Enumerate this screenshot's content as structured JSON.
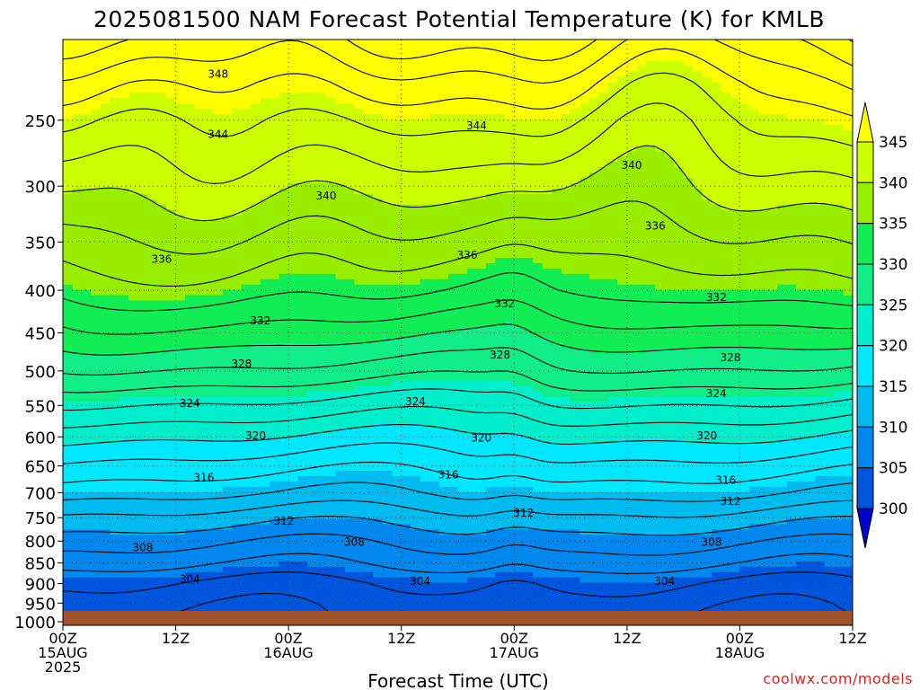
{
  "title": "2025081500 NAM Forecast Potential Temperature (K) for KMLB",
  "xlabel": "Forecast Time (UTC)",
  "credit": "coolwx.com/models",
  "colors": {
    "fill_levels": [
      {
        "min": 345,
        "color": "#ffff00"
      },
      {
        "min": 340,
        "color": "#ccff00"
      },
      {
        "min": 335,
        "color": "#99ee00"
      },
      {
        "min": 330,
        "color": "#11ee55"
      },
      {
        "min": 325,
        "color": "#11ee88"
      },
      {
        "min": 320,
        "color": "#00eecc"
      },
      {
        "min": 315,
        "color": "#00e8ff"
      },
      {
        "min": 310,
        "color": "#00bbf0"
      },
      {
        "min": 305,
        "color": "#0088ee"
      },
      {
        "min": 300,
        "color": "#0055dd"
      },
      {
        "min": 0,
        "color": "#0000cc"
      }
    ],
    "ground": "#a0522d"
  },
  "chart_data": {
    "type": "heatmap",
    "title": "2025081500 NAM Forecast Potential Temperature (K) for KMLB",
    "xlabel": "Forecast Time (UTC)",
    "ylabel": "",
    "x_ticks": [
      {
        "hour": 0,
        "lines": [
          "00Z",
          "15AUG",
          "2025"
        ]
      },
      {
        "hour": 12,
        "lines": [
          "12Z"
        ]
      },
      {
        "hour": 24,
        "lines": [
          "00Z",
          "16AUG"
        ]
      },
      {
        "hour": 36,
        "lines": [
          "12Z"
        ]
      },
      {
        "hour": 48,
        "lines": [
          "00Z",
          "17AUG"
        ]
      },
      {
        "hour": 60,
        "lines": [
          "12Z"
        ]
      },
      {
        "hour": 72,
        "lines": [
          "00Z",
          "18AUG"
        ]
      },
      {
        "hour": 84,
        "lines": [
          "12Z"
        ]
      }
    ],
    "xlim_hours": [
      0,
      84
    ],
    "y_ticks": [
      250,
      300,
      350,
      400,
      450,
      500,
      550,
      600,
      650,
      700,
      750,
      800,
      850,
      900,
      950,
      1000
    ],
    "ylim_hpa": [
      1010,
      200
    ],
    "y_scale": "log-pressure",
    "grid": "dotted",
    "colorbar": {
      "ticks": [
        300,
        305,
        310,
        315,
        320,
        325,
        330,
        335,
        340,
        345
      ],
      "bins": [
        {
          "lo": 300,
          "hi": 305,
          "color": "#0055dd"
        },
        {
          "lo": 305,
          "hi": 310,
          "color": "#0088ee"
        },
        {
          "lo": 310,
          "hi": 315,
          "color": "#00bbf0"
        },
        {
          "lo": 315,
          "hi": 320,
          "color": "#00e8ff"
        },
        {
          "lo": 320,
          "hi": 325,
          "color": "#00eecc"
        },
        {
          "lo": 325,
          "hi": 330,
          "color": "#11ee88"
        },
        {
          "lo": 330,
          "hi": 335,
          "color": "#11ee55"
        },
        {
          "lo": 335,
          "hi": 340,
          "color": "#99ee00"
        },
        {
          "lo": 340,
          "hi": 345,
          "color": "#ccff00"
        }
      ],
      "over_color": "#ffff00",
      "under_color": "#0000cc"
    },
    "contour_interval": 2,
    "profile": [
      {
        "p": 1005,
        "theta": 301.5
      },
      {
        "p": 1000,
        "theta": 302.0
      },
      {
        "p": 950,
        "theta": 302.8
      },
      {
        "p": 900,
        "theta": 304.0
      },
      {
        "p": 850,
        "theta": 306.5
      },
      {
        "p": 800,
        "theta": 308.6
      },
      {
        "p": 750,
        "theta": 311.2
      },
      {
        "p": 700,
        "theta": 314.4
      },
      {
        "p": 650,
        "theta": 317.0
      },
      {
        "p": 600,
        "theta": 320.0
      },
      {
        "p": 550,
        "theta": 323.5
      },
      {
        "p": 500,
        "theta": 327.4
      },
      {
        "p": 450,
        "theta": 331.0
      },
      {
        "p": 400,
        "theta": 334.5
      },
      {
        "p": 350,
        "theta": 337.3
      },
      {
        "p": 300,
        "theta": 340.5
      },
      {
        "p": 250,
        "theta": 344.0
      },
      {
        "p": 225,
        "theta": 346.5
      },
      {
        "p": 200,
        "theta": 350.0
      }
    ],
    "contour_labels": [
      {
        "text": "348",
        "hour": 16.5,
        "p": 220
      },
      {
        "text": "344",
        "hour": 16.5,
        "p": 260
      },
      {
        "text": "344",
        "hour": 44.0,
        "p": 254
      },
      {
        "text": "340",
        "hour": 28.0,
        "p": 308
      },
      {
        "text": "340",
        "hour": 60.5,
        "p": 283
      },
      {
        "text": "336",
        "hour": 10.5,
        "p": 367
      },
      {
        "text": "336",
        "hour": 43.0,
        "p": 363
      },
      {
        "text": "336",
        "hour": 63.0,
        "p": 335
      },
      {
        "text": "332",
        "hour": 21.0,
        "p": 435
      },
      {
        "text": "332",
        "hour": 47.0,
        "p": 415
      },
      {
        "text": "332",
        "hour": 69.5,
        "p": 408
      },
      {
        "text": "328",
        "hour": 19.0,
        "p": 490
      },
      {
        "text": "328",
        "hour": 46.5,
        "p": 478
      },
      {
        "text": "328",
        "hour": 71.0,
        "p": 482
      },
      {
        "text": "324",
        "hour": 13.5,
        "p": 547
      },
      {
        "text": "324",
        "hour": 37.5,
        "p": 544
      },
      {
        "text": "324",
        "hour": 69.5,
        "p": 532
      },
      {
        "text": "320",
        "hour": 20.5,
        "p": 598
      },
      {
        "text": "320",
        "hour": 44.5,
        "p": 602
      },
      {
        "text": "320",
        "hour": 68.5,
        "p": 598
      },
      {
        "text": "316",
        "hour": 15.0,
        "p": 671
      },
      {
        "text": "316",
        "hour": 41.0,
        "p": 666
      },
      {
        "text": "316",
        "hour": 70.5,
        "p": 676
      },
      {
        "text": "312",
        "hour": 23.5,
        "p": 757
      },
      {
        "text": "312",
        "hour": 49.0,
        "p": 740
      },
      {
        "text": "312",
        "hour": 71.0,
        "p": 717
      },
      {
        "text": "308",
        "hour": 8.5,
        "p": 815
      },
      {
        "text": "308",
        "hour": 31.0,
        "p": 803
      },
      {
        "text": "308",
        "hour": 69.0,
        "p": 803
      },
      {
        "text": "304",
        "hour": 13.5,
        "p": 889
      },
      {
        "text": "304",
        "hour": 38.0,
        "p": 894
      },
      {
        "text": "304",
        "hour": 64.0,
        "p": 894
      }
    ]
  }
}
